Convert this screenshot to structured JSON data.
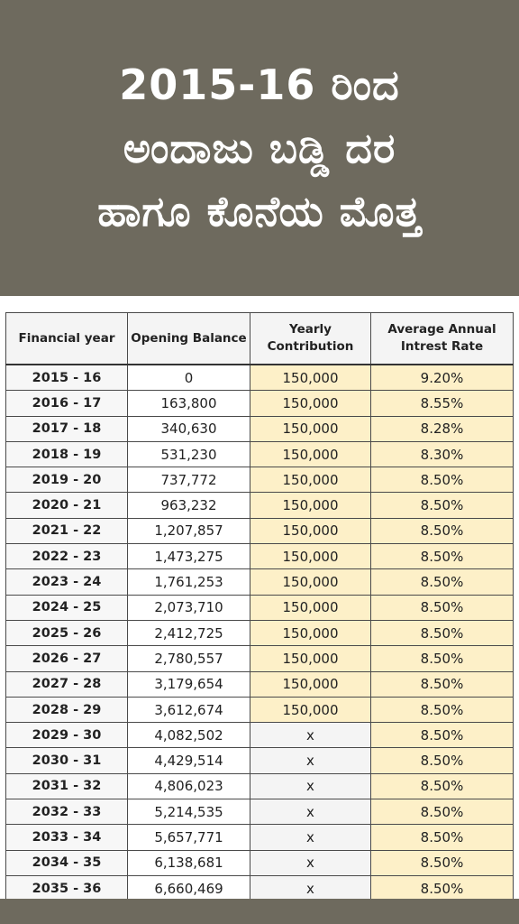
{
  "banner": {
    "line1": "2015-16 ರಿಂದ",
    "line2": "ಅಂದಾಜು ಬಡ್ಡಿ ದರ",
    "line3": "ಹಾಗೂ ಕೊನೆಯ ಮೊತ್ತ"
  },
  "table": {
    "headers": [
      "Financial year",
      "Opening Balance",
      "Yearly Contribution",
      "Average Annual Intrest Rate"
    ],
    "rows": [
      {
        "year": "2015 - 16",
        "opening": "0",
        "contribution": "150,000",
        "rate": "9.20%"
      },
      {
        "year": "2016 - 17",
        "opening": "163,800",
        "contribution": "150,000",
        "rate": "8.55%"
      },
      {
        "year": "2017 - 18",
        "opening": "340,630",
        "contribution": "150,000",
        "rate": "8.28%"
      },
      {
        "year": "2018 - 19",
        "opening": "531,230",
        "contribution": "150,000",
        "rate": "8.30%"
      },
      {
        "year": "2019 - 20",
        "opening": "737,772",
        "contribution": "150,000",
        "rate": "8.50%"
      },
      {
        "year": "2020 - 21",
        "opening": "963,232",
        "contribution": "150,000",
        "rate": "8.50%"
      },
      {
        "year": "2021 - 22",
        "opening": "1,207,857",
        "contribution": "150,000",
        "rate": "8.50%"
      },
      {
        "year": "2022 - 23",
        "opening": "1,473,275",
        "contribution": "150,000",
        "rate": "8.50%"
      },
      {
        "year": "2023 - 24",
        "opening": "1,761,253",
        "contribution": "150,000",
        "rate": "8.50%"
      },
      {
        "year": "2024 - 25",
        "opening": "2,073,710",
        "contribution": "150,000",
        "rate": "8.50%"
      },
      {
        "year": "2025 - 26",
        "opening": "2,412,725",
        "contribution": "150,000",
        "rate": "8.50%"
      },
      {
        "year": "2026 - 27",
        "opening": "2,780,557",
        "contribution": "150,000",
        "rate": "8.50%"
      },
      {
        "year": "2027 - 28",
        "opening": "3,179,654",
        "contribution": "150,000",
        "rate": "8.50%"
      },
      {
        "year": "2028 - 29",
        "opening": "3,612,674",
        "contribution": "150,000",
        "rate": "8.50%"
      },
      {
        "year": "2029 - 30",
        "opening": "4,082,502",
        "contribution": "x",
        "rate": "8.50%"
      },
      {
        "year": "2030 - 31",
        "opening": "4,429,514",
        "contribution": "x",
        "rate": "8.50%"
      },
      {
        "year": "2031 - 32",
        "opening": "4,806,023",
        "contribution": "x",
        "rate": "8.50%"
      },
      {
        "year": "2032 - 33",
        "opening": "5,214,535",
        "contribution": "x",
        "rate": "8.50%"
      },
      {
        "year": "2033 - 34",
        "opening": "5,657,771",
        "contribution": "x",
        "rate": "8.50%"
      },
      {
        "year": "2034 - 35",
        "opening": "6,138,681",
        "contribution": "x",
        "rate": "8.50%"
      },
      {
        "year": "2035 - 36",
        "opening": "6,660,469",
        "contribution": "x",
        "rate": "8.50%"
      }
    ]
  },
  "colors": {
    "banner_bg": "#6e6a5e",
    "highlight": "#fdf0c8"
  }
}
